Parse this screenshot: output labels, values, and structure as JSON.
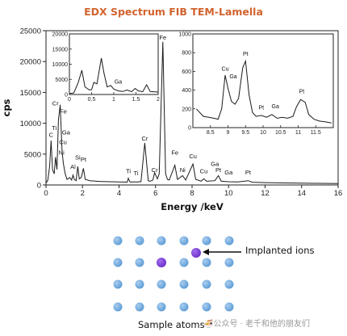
{
  "chart_data": {
    "type": "line",
    "title": "EDX Spectrum FIB TEM-Lamella",
    "xlabel": "Energy /keV",
    "ylabel": "cps",
    "xlim": [
      0,
      16
    ],
    "ylim": [
      0,
      25000
    ],
    "x_ticks": [
      "0",
      "2",
      "4",
      "6",
      "8",
      "10",
      "12",
      "14",
      "16"
    ],
    "y_ticks": [
      "0",
      "5000",
      "10000",
      "15000",
      "20000",
      "25000"
    ],
    "series": [
      {
        "points": [
          [
            0,
            300
          ],
          [
            0.1,
            800
          ],
          [
            0.2,
            3000
          ],
          [
            0.28,
            7200
          ],
          [
            0.36,
            2500
          ],
          [
            0.45,
            1800
          ],
          [
            0.52,
            4500
          ],
          [
            0.6,
            2500
          ],
          [
            0.68,
            10500
          ],
          [
            0.78,
            13000
          ],
          [
            0.88,
            5500
          ],
          [
            0.95,
            3500
          ],
          [
            1.05,
            1800
          ],
          [
            1.15,
            900
          ],
          [
            1.25,
            1100
          ],
          [
            1.3,
            1200
          ],
          [
            1.4,
            800
          ],
          [
            1.48,
            1600
          ],
          [
            1.55,
            900
          ],
          [
            1.65,
            700
          ],
          [
            1.74,
            3000
          ],
          [
            1.82,
            1000
          ],
          [
            1.93,
            1200
          ],
          [
            2.05,
            2700
          ],
          [
            2.15,
            900
          ],
          [
            2.4,
            700
          ],
          [
            3,
            560
          ],
          [
            3.5,
            520
          ],
          [
            4,
            480
          ],
          [
            4.45,
            460
          ],
          [
            4.51,
            1100
          ],
          [
            4.6,
            480
          ],
          [
            4.93,
            480
          ],
          [
            5.0,
            500
          ],
          [
            5.2,
            540
          ],
          [
            5.41,
            6800
          ],
          [
            5.6,
            700
          ],
          [
            5.7,
            600
          ],
          [
            5.85,
            800
          ],
          [
            5.95,
            2000
          ],
          [
            6.1,
            1000
          ],
          [
            6.2,
            1800
          ],
          [
            6.4,
            23200
          ],
          [
            6.55,
            1800
          ],
          [
            6.65,
            900
          ],
          [
            6.75,
            800
          ],
          [
            7.06,
            3200
          ],
          [
            7.2,
            900
          ],
          [
            7.48,
            1500
          ],
          [
            7.65,
            800
          ],
          [
            8.05,
            3400
          ],
          [
            8.2,
            900
          ],
          [
            8.5,
            620
          ],
          [
            8.64,
            1000
          ],
          [
            8.8,
            600
          ],
          [
            9.25,
            700
          ],
          [
            9.44,
            1500
          ],
          [
            9.6,
            600
          ],
          [
            10,
            520
          ],
          [
            10.5,
            500
          ],
          [
            11.07,
            700
          ],
          [
            11.3,
            450
          ],
          [
            12,
            380
          ],
          [
            13,
            330
          ],
          [
            14,
            290
          ],
          [
            15,
            260
          ],
          [
            16,
            240
          ]
        ],
        "color": "#1a1a1a"
      }
    ],
    "peak_labels": [
      {
        "text": "C",
        "x": 0.28,
        "y": 7400
      },
      {
        "text": "Cr",
        "x": 0.52,
        "y": 12500
      },
      {
        "text": "Ti",
        "x": 0.45,
        "y": 8500
      },
      {
        "text": "Fe",
        "x": 0.95,
        "y": 11200
      },
      {
        "text": "Ga",
        "x": 1.1,
        "y": 7800
      },
      {
        "text": "Cu",
        "x": 0.93,
        "y": 6200
      },
      {
        "text": "Ni",
        "x": 0.85,
        "y": 4500
      },
      {
        "text": "Al",
        "x": 1.48,
        "y": 2200
      },
      {
        "text": "Si",
        "x": 1.74,
        "y": 3700
      },
      {
        "text": "Pt",
        "x": 2.05,
        "y": 3400
      },
      {
        "text": "Ti",
        "x": 4.51,
        "y": 1500
      },
      {
        "text": "Ti",
        "x": 4.93,
        "y": 1200
      },
      {
        "text": "Cr",
        "x": 5.41,
        "y": 6800
      },
      {
        "text": "Cr",
        "x": 5.95,
        "y": 1700
      },
      {
        "text": "Fe",
        "x": 6.4,
        "y": 23200
      },
      {
        "text": "Fe",
        "x": 7.06,
        "y": 4500
      },
      {
        "text": "Ni",
        "x": 7.48,
        "y": 1700
      },
      {
        "text": "Cu",
        "x": 8.05,
        "y": 3900
      },
      {
        "text": "Ga",
        "x": 9.25,
        "y": 2700
      },
      {
        "text": "Cu",
        "x": 8.64,
        "y": 1500
      },
      {
        "text": "Pt",
        "x": 9.44,
        "y": 1700
      },
      {
        "text": "Ga",
        "x": 10.0,
        "y": 1300
      },
      {
        "text": "Pt",
        "x": 11.07,
        "y": 1300
      }
    ],
    "insets": [
      {
        "name": "low-energy",
        "xlim": [
          0,
          2
        ],
        "ylim": [
          0,
          20000
        ],
        "x_ticks": [
          "0",
          "0.5",
          "1",
          "1.5",
          "2"
        ],
        "y_ticks": [
          "0",
          "5000",
          "10000",
          "15000",
          "20000"
        ],
        "points": [
          [
            0,
            300
          ],
          [
            0.1,
            500
          ],
          [
            0.2,
            4000
          ],
          [
            0.28,
            8000
          ],
          [
            0.35,
            2500
          ],
          [
            0.45,
            1500
          ],
          [
            0.5,
            1600
          ],
          [
            0.55,
            4000
          ],
          [
            0.62,
            3500
          ],
          [
            0.72,
            12000
          ],
          [
            0.78,
            7000
          ],
          [
            0.85,
            2500
          ],
          [
            0.93,
            3000
          ],
          [
            1.0,
            1800
          ],
          [
            1.1,
            1200
          ],
          [
            1.2,
            1000
          ],
          [
            1.3,
            1500
          ],
          [
            1.4,
            900
          ],
          [
            1.48,
            2000
          ],
          [
            1.55,
            1200
          ],
          [
            1.65,
            900
          ],
          [
            1.74,
            3200
          ],
          [
            1.82,
            1000
          ],
          [
            1.9,
            900
          ],
          [
            2,
            800
          ]
        ],
        "labels": [
          {
            "text": "Ga",
            "x": 1.1,
            "y": 2800
          }
        ]
      },
      {
        "name": "high-energy",
        "xlim": [
          8,
          12
        ],
        "ylim": [
          0,
          1000
        ],
        "x_ticks": [
          "8.5",
          "9",
          "9.5",
          "10",
          "10.5",
          "11",
          "11.5"
        ],
        "y_ticks": [
          "0",
          "200",
          "400",
          "600",
          "800",
          "1000"
        ],
        "points": [
          [
            8.1,
            200
          ],
          [
            8.3,
            120
          ],
          [
            8.45,
            110
          ],
          [
            8.6,
            100
          ],
          [
            8.72,
            90
          ],
          [
            8.82,
            200
          ],
          [
            8.92,
            560
          ],
          [
            9.0,
            420
          ],
          [
            9.1,
            280
          ],
          [
            9.2,
            250
          ],
          [
            9.3,
            310
          ],
          [
            9.42,
            640
          ],
          [
            9.5,
            710
          ],
          [
            9.6,
            350
          ],
          [
            9.7,
            160
          ],
          [
            9.8,
            120
          ],
          [
            9.95,
            130
          ],
          [
            10.1,
            110
          ],
          [
            10.25,
            140
          ],
          [
            10.4,
            100
          ],
          [
            10.55,
            110
          ],
          [
            10.7,
            100
          ],
          [
            10.85,
            120
          ],
          [
            10.95,
            220
          ],
          [
            11.07,
            300
          ],
          [
            11.2,
            270
          ],
          [
            11.3,
            140
          ],
          [
            11.45,
            90
          ],
          [
            11.6,
            70
          ],
          [
            11.8,
            60
          ],
          [
            11.95,
            50
          ]
        ],
        "labels": [
          {
            "text": "Cu",
            "x": 8.92,
            "y": 580
          },
          {
            "text": "Ga",
            "x": 9.15,
            "y": 500
          },
          {
            "text": "Pt",
            "x": 9.5,
            "y": 740
          },
          {
            "text": "Pt",
            "x": 9.95,
            "y": 170
          },
          {
            "text": "Ga",
            "x": 10.35,
            "y": 180
          },
          {
            "text": "Pt",
            "x": 11.1,
            "y": 340
          }
        ]
      }
    ]
  },
  "diagram": {
    "implant_label": "Implanted ions",
    "sample_label": "Sample atoms",
    "atom_color": "#5b9bd5",
    "ion_color": "#6a2fc8"
  },
  "watermark": "🍜公众号 · 老千和他的朋友们"
}
